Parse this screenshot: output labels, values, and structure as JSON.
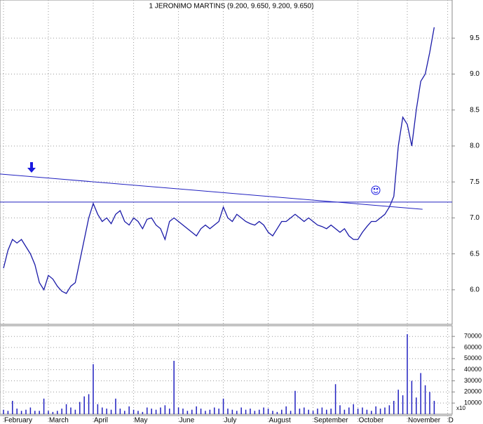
{
  "chart_data": [
    {
      "type": "line",
      "title": "1 JERONIMO MARTINS (9.200, 9.650, 9.200, 9.650)",
      "x": [
        0,
        1,
        2,
        3,
        4,
        5,
        6,
        7,
        8,
        9,
        10,
        11,
        12,
        13,
        14,
        15,
        16,
        17,
        18,
        19,
        20,
        21,
        22,
        23,
        24,
        25,
        26,
        27,
        28,
        29,
        30,
        31,
        32,
        33,
        34,
        35,
        36,
        37,
        38,
        39,
        40,
        41,
        42,
        43,
        44,
        45,
        46,
        47,
        48,
        49,
        50,
        51,
        52,
        53,
        54,
        55,
        56,
        57,
        58,
        59,
        60,
        61,
        62,
        63,
        64,
        65,
        66,
        67,
        68,
        69,
        70,
        71,
        72,
        73,
        74,
        75,
        76,
        77,
        78,
        79,
        80,
        81,
        82,
        83,
        84,
        85,
        86,
        87,
        88,
        89,
        90,
        91,
        92,
        93,
        94,
        95,
        96
      ],
      "series": [
        {
          "color": "#1a1aa8",
          "values": [
            6.3,
            6.55,
            6.7,
            6.65,
            6.7,
            6.6,
            6.5,
            6.35,
            6.1,
            6.0,
            6.2,
            6.15,
            6.05,
            5.98,
            5.95,
            6.05,
            6.1,
            6.4,
            6.7,
            7.0,
            7.2,
            7.05,
            6.95,
            7.0,
            6.92,
            7.05,
            7.1,
            6.95,
            6.9,
            7.0,
            6.95,
            6.85,
            6.98,
            7.0,
            6.9,
            6.85,
            6.7,
            6.95,
            7.0,
            6.95,
            6.9,
            6.85,
            6.8,
            6.75,
            6.85,
            6.9,
            6.85,
            6.9,
            6.95,
            7.15,
            7.0,
            6.95,
            7.05,
            7.0,
            6.95,
            6.92,
            6.9,
            6.95,
            6.9,
            6.8,
            6.75,
            6.85,
            6.95,
            6.95,
            7.0,
            7.05,
            7.0,
            6.95,
            7.0,
            6.95,
            6.9,
            6.88,
            6.85,
            6.9,
            6.85,
            6.8,
            6.85,
            6.75,
            6.7,
            6.7,
            6.8,
            6.88,
            6.95,
            6.95,
            7.0,
            7.05,
            7.15,
            7.3,
            8.0,
            8.4,
            8.3,
            8.0,
            8.5,
            8.9,
            9.0,
            9.3,
            9.65
          ]
        }
      ],
      "trendlines": [
        {
          "x": [
            -0.78,
            93.4
          ],
          "y": [
            7.61,
            7.12
          ],
          "color": "#2020c0"
        },
        {
          "y": 7.22,
          "color": "#2020c0"
        }
      ],
      "xlim": [
        -0.78,
        100
      ],
      "ylim": [
        5.52,
        10.03
      ],
      "yticks": [
        {
          "value": 6,
          "label": "6.0"
        },
        6.5,
        {
          "value": 7,
          "label": "7.0"
        },
        7.5,
        {
          "value": 8,
          "label": "8.0"
        },
        8.5,
        {
          "value": 9,
          "label": "9.0"
        },
        9.5
      ],
      "grid": true
    },
    {
      "type": "bar",
      "y_unit_label": "x10",
      "values": [
        4000,
        3000,
        12000,
        5000,
        3000,
        4000,
        6000,
        3000,
        3000,
        14000,
        3000,
        2000,
        3000,
        5000,
        9000,
        6000,
        4000,
        11000,
        16000,
        18000,
        45000,
        9000,
        6000,
        5000,
        4000,
        14000,
        5000,
        3000,
        7000,
        4000,
        3000,
        2000,
        6000,
        5000,
        4000,
        6000,
        8000,
        5000,
        48000,
        6000,
        5000,
        3000,
        4000,
        7000,
        5000,
        3000,
        4000,
        6000,
        5000,
        14000,
        5000,
        4000,
        3000,
        6000,
        4000,
        5000,
        3000,
        4000,
        6000,
        5000,
        3000,
        2000,
        4000,
        7000,
        3000,
        21000,
        5000,
        6000,
        4000,
        3000,
        5000,
        6000,
        4000,
        5000,
        27000,
        8000,
        4000,
        6000,
        9000,
        5000,
        6000,
        4000,
        3000,
        7000,
        5000,
        6000,
        8000,
        12000,
        22000,
        17000,
        72000,
        30000,
        15000,
        37000,
        26000,
        20000,
        12000
      ],
      "color": "#2020c0",
      "xlim": [
        -0.78,
        100
      ],
      "ylim": [
        0,
        79600
      ],
      "yticks": [
        10000,
        20000,
        30000,
        40000,
        50000,
        60000,
        70000
      ],
      "xticks": [
        {
          "value": 0,
          "label": "February"
        },
        {
          "value": 10,
          "label": "March"
        },
        {
          "value": 20,
          "label": "April"
        },
        {
          "value": 29,
          "label": "May"
        },
        {
          "value": 39,
          "label": "June"
        },
        {
          "value": 49,
          "label": "July"
        },
        {
          "value": 59,
          "label": "August"
        },
        {
          "value": 69,
          "label": "September"
        },
        {
          "value": 79,
          "label": "October"
        },
        {
          "value": 90,
          "label": "November"
        },
        {
          "value": 99,
          "label": "D"
        }
      ],
      "grid": true
    }
  ]
}
